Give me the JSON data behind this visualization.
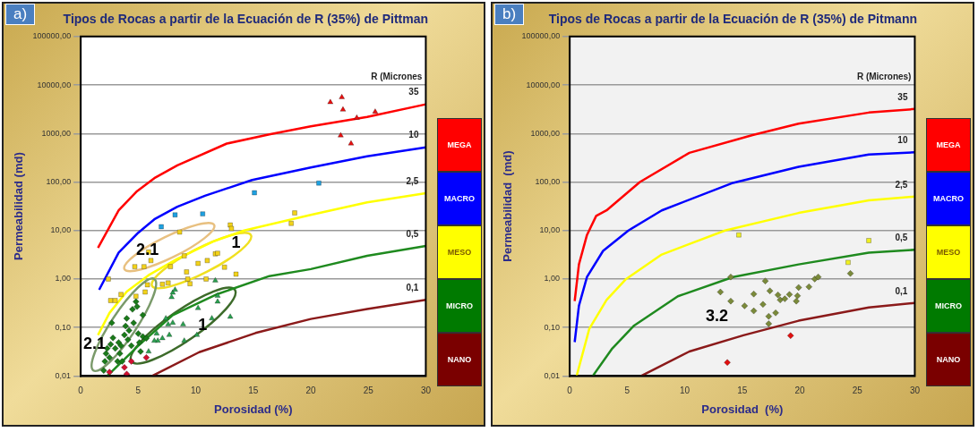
{
  "chart_data": [
    {
      "type": "scatter",
      "title": "Tipos de Rocas a partir de la Ecuación de R (35%) de Pittman",
      "xlabel": "Porosidad (%)",
      "ylabel": "Permeabilidad (md)",
      "legend_title": "R (Micrones",
      "xlim": [
        0,
        30
      ],
      "xticks": [
        0,
        5,
        10,
        15,
        20,
        25,
        30
      ],
      "ylim": [
        0.01,
        100000
      ],
      "yticks": [
        {
          "value": 0.01,
          "label": "0,01"
        },
        {
          "value": 0.1,
          "label": "0,10"
        },
        {
          "value": 1,
          "label": "1,00"
        },
        {
          "value": 10,
          "label": "10,00"
        },
        {
          "value": 100,
          "label": "100,00"
        },
        {
          "value": 1000,
          "label": "1000,00"
        },
        {
          "value": 10000,
          "label": "10000,00"
        },
        {
          "value": 100000,
          "label": "100000,00"
        }
      ],
      "log": "y",
      "grid": "y",
      "legend": false,
      "annotations": [
        "a)",
        "MEGA",
        "MACRO",
        "MESO",
        "MICRO",
        "NANO",
        "2.1",
        "1",
        "1",
        "2.1"
      ],
      "series": [
        {
          "type": "line",
          "name": "35",
          "color": "#ff0000",
          "marker": "none",
          "x": [
            1.5,
            3.3,
            4.9,
            6.4,
            8.4,
            12.7,
            16.4,
            20,
            24.9,
            30
          ],
          "values": [
            4.4,
            26,
            65,
            120,
            220,
            620,
            960,
            1400,
            2200,
            4000
          ]
        },
        {
          "type": "line",
          "name": "10",
          "color": "#0000ff",
          "marker": "none",
          "x": [
            1.6,
            3.3,
            5,
            6.4,
            8.4,
            10.8,
            14.9,
            20,
            24.9,
            30
          ],
          "values": [
            0.6,
            3.5,
            9,
            17,
            31,
            52,
            110,
            200,
            340,
            520
          ]
        },
        {
          "type": "line",
          "name": "2,5",
          "color": "#ffff00",
          "marker": "none",
          "x": [
            1.5,
            2.5,
            4,
            5.9,
            8.4,
            11.5,
            14.2,
            20,
            24.9,
            30
          ],
          "values": [
            0.07,
            0.2,
            0.55,
            1.2,
            2.6,
            5.9,
            10,
            21,
            38,
            59
          ]
        },
        {
          "type": "line",
          "name": "0,5",
          "color": "#1f8a1f",
          "marker": "none",
          "x": [
            2.3,
            5,
            8,
            11.9,
            16.4,
            20,
            24.9,
            30
          ],
          "values": [
            0.01,
            0.042,
            0.18,
            0.49,
            1.15,
            1.6,
            3,
            4.8
          ]
        },
        {
          "type": "line",
          "name": "0,1",
          "color": "#8b1a1a",
          "marker": "none",
          "x": [
            6.2,
            10.3,
            15.2,
            20,
            24.9,
            30
          ],
          "values": [
            0.01,
            0.031,
            0.077,
            0.15,
            0.24,
            0.37
          ]
        },
        {
          "type": "scatter",
          "color": "#e81010",
          "marker": "triangle",
          "x": [
            21.7,
            22.7,
            22.8,
            24,
            25.6,
            22.6,
            23.5
          ],
          "values": [
            4400,
            5600,
            3100,
            2100,
            2800,
            910,
            620
          ]
        },
        {
          "type": "scatter",
          "color": "#1ea0e0",
          "marker": "square",
          "x": [
            7,
            8.2,
            10.6,
            15.1,
            20.7
          ],
          "values": [
            12,
            21,
            22,
            60,
            95
          ]
        },
        {
          "type": "scatter",
          "color": "#f2d21b",
          "marker": "square",
          "x": [
            2.4,
            2.6,
            3,
            3.5,
            4.7,
            5.5,
            4.8,
            5.6,
            5.8,
            6.1,
            5.9,
            7.1,
            7.6,
            7.8,
            8.6,
            9,
            9.2,
            9.3,
            9.5,
            10.2,
            10.9,
            11,
            11.7,
            11.9,
            12.5,
            13,
            13.1,
            13.5,
            18.3,
            18.6
          ],
          "values": [
            1,
            0.36,
            0.36,
            0.48,
            1.8,
            1.8,
            0.44,
            0.54,
            0.76,
            2.4,
            3.6,
            0.78,
            0.83,
            1.8,
            9.3,
            3,
            1.4,
            1,
            0.8,
            2.1,
            1,
            2.4,
            3.3,
            3.4,
            1.75,
            13,
            11,
            1.26,
            14,
            23
          ]
        },
        {
          "type": "scatter",
          "color": "#1a7a1a",
          "marker": "diamond",
          "x": [
            2.1,
            2.2,
            2.3,
            2.6,
            2.7,
            2.8,
            3,
            3.2,
            3.3,
            3.4,
            3.5,
            3.6,
            3.8,
            3.9,
            4,
            4.1,
            4.2,
            4.4,
            4.5,
            4.6,
            4.8,
            4.9,
            5,
            5.1,
            5.2,
            5.4,
            5.7,
            5.4,
            2.5,
            2
          ],
          "values": [
            0.02,
            0.029,
            0.037,
            0.045,
            0.124,
            0.061,
            0.037,
            0.02,
            0.049,
            0.029,
            0.042,
            0.02,
            0.07,
            0.107,
            0.154,
            0.056,
            0.087,
            0.042,
            0.237,
            0.124,
            0.34,
            0.27,
            0.075,
            0.049,
            0.032,
            0.065,
            0.06,
            0.18,
            0.024,
            0.013
          ]
        },
        {
          "type": "scatter",
          "color": "#2aa050",
          "marker": "triangle",
          "x": [
            8,
            8.2,
            7.9,
            7.4,
            7.6,
            6.6,
            6.7,
            7.1,
            7.7,
            8,
            8.9,
            9,
            10.2,
            10.1,
            11.4,
            11.7,
            11.9,
            11.9,
            13,
            5.9,
            6.4
          ],
          "values": [
            0.52,
            0.6,
            0.42,
            0.154,
            0.116,
            0.075,
            0.053,
            0.06,
            0.07,
            0.125,
            0.116,
            0.053,
            0.25,
            0.07,
            0.154,
            0.93,
            0.45,
            0.34,
            0.166,
            0.032,
            0.053
          ]
        },
        {
          "type": "scatter",
          "color": "#d01030",
          "marker": "diamond",
          "x": [
            2.5,
            4,
            4.4,
            5.7,
            3.8
          ],
          "values": [
            0.012,
            0.011,
            0.02,
            0.024,
            0.015
          ]
        }
      ]
    },
    {
      "type": "scatter",
      "title": "Tipos de Rocas a partir de la Ecuación de R (35%) de Pitmann",
      "xlabel": "Porosidad  (%)",
      "ylabel": "Permeabilidad  (md)",
      "legend_title": "R (Micrones)",
      "xlim": [
        0,
        30
      ],
      "xticks": [
        0,
        5,
        10,
        15,
        20,
        25,
        30
      ],
      "ylim": [
        0.01,
        100000
      ],
      "yticks": [
        {
          "value": 0.01,
          "label": "0,01"
        },
        {
          "value": 0.1,
          "label": "0,10"
        },
        {
          "value": 1,
          "label": "1,00"
        },
        {
          "value": 10,
          "label": "10,00"
        },
        {
          "value": 100,
          "label": "100,00"
        },
        {
          "value": 1000,
          "label": "1000,00"
        },
        {
          "value": 10000,
          "label": "10000,00"
        },
        {
          "value": 100000,
          "label": "100000,00"
        }
      ],
      "log": "y",
      "grid": "y",
      "legend": false,
      "annotations": [
        "b)",
        "MEGA",
        "MACRO",
        "MESO",
        "MICRO",
        "NANO",
        "3.2"
      ],
      "series": [
        {
          "type": "line",
          "name": "35",
          "color": "#ff0000",
          "marker": "none",
          "x": [
            0.43,
            0.8,
            1.5,
            2.3,
            3.2,
            6.1,
            10.4,
            15.9,
            19.9,
            26,
            30
          ],
          "values": [
            0.35,
            2,
            8.1,
            20,
            26,
            100,
            400,
            930,
            1600,
            2700,
            3200
          ]
        },
        {
          "type": "line",
          "name": "10",
          "color": "#0000ff",
          "marker": "none",
          "x": [
            0.43,
            0.8,
            1.5,
            2.9,
            5.1,
            8,
            14.2,
            19.9,
            26,
            30
          ],
          "values": [
            0.05,
            0.28,
            1.1,
            3.8,
            10,
            26,
            96,
            206,
            370,
            410
          ]
        },
        {
          "type": "line",
          "name": "2,5",
          "color": "#ffff00",
          "marker": "none",
          "x": [
            0.6,
            1.7,
            3.2,
            4.9,
            8,
            13.5,
            19.9,
            26,
            30
          ],
          "values": [
            0.01,
            0.094,
            0.37,
            1,
            3.2,
            10,
            23,
            42,
            50
          ]
        },
        {
          "type": "line",
          "name": "0,5",
          "color": "#1f8a1f",
          "marker": "none",
          "x": [
            2,
            3.7,
            5.6,
            9.4,
            14.2,
            19.9,
            26,
            30
          ],
          "values": [
            0.01,
            0.037,
            0.11,
            0.44,
            1.1,
            2,
            3.5,
            4
          ]
        },
        {
          "type": "line",
          "name": "0,1",
          "color": "#8b1a1a",
          "marker": "none",
          "x": [
            6.2,
            10.4,
            15.1,
            19.9,
            26,
            30
          ],
          "values": [
            0.01,
            0.032,
            0.069,
            0.138,
            0.26,
            0.32
          ]
        },
        {
          "type": "scatter",
          "color": "#7a8a3a",
          "marker": "diamond",
          "x": [
            14,
            13.1,
            14,
            15.2,
            16,
            16,
            16.8,
            17,
            17.4,
            17.3,
            17.3,
            17.9,
            18.1,
            18.3,
            18.7,
            19.1,
            19.7,
            19.8,
            19.9,
            20.8,
            21.3,
            21.6,
            24.4
          ],
          "values": [
            1.1,
            0.54,
            0.35,
            0.28,
            0.49,
            0.22,
            0.3,
            0.91,
            0.57,
            0.17,
            0.12,
            0.2,
            0.47,
            0.37,
            0.39,
            0.48,
            0.35,
            0.45,
            0.67,
            0.69,
            1,
            1.1,
            1.3
          ]
        },
        {
          "type": "scatter",
          "color": "#f0f020",
          "marker": "square",
          "x": [
            14.7,
            26,
            24.2
          ],
          "values": [
            8.1,
            6.2,
            2.2
          ]
        },
        {
          "type": "scatter",
          "color": "#e01010",
          "marker": "diamond",
          "x": [
            13.7,
            19.2
          ],
          "values": [
            0.019,
            0.068
          ]
        }
      ]
    }
  ]
}
